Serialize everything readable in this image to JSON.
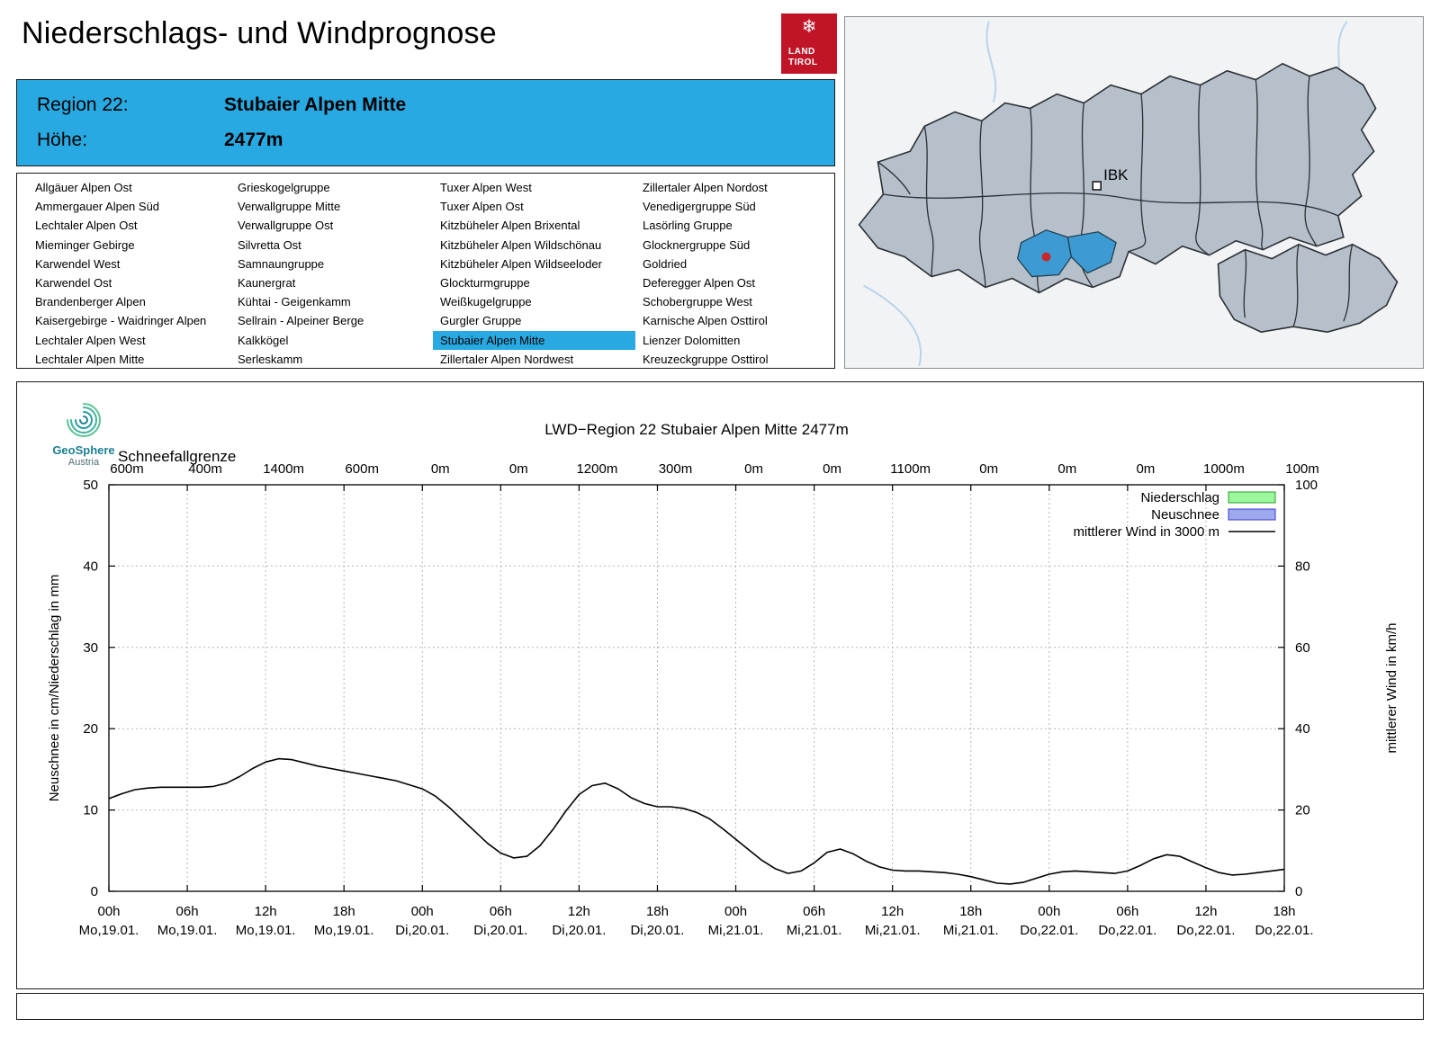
{
  "header": {
    "title": "Niederschlags- und Windprognose",
    "logo_line1": "LAND",
    "logo_line2": "TIROL"
  },
  "region_banner": {
    "region_label": "Region 22:",
    "region_name": "Stubaier Alpen Mitte",
    "altitude_label": "Höhe:",
    "altitude_value": "2477m"
  },
  "region_list": {
    "selected": "Stubaier Alpen Mitte",
    "columns": [
      [
        "Allgäuer Alpen Ost",
        "Ammergauer Alpen Süd",
        "Lechtaler Alpen Ost",
        "Mieminger Gebirge",
        "Karwendel West",
        "Karwendel Ost",
        "Brandenberger Alpen",
        "Kaisergebirge - Waidringer Alpen",
        "Lechtaler Alpen West",
        "Lechtaler Alpen Mitte"
      ],
      [
        "Grieskogelgruppe",
        "Verwallgruppe Mitte",
        "Verwallgruppe Ost",
        "Silvretta Ost",
        "Samnaungruppe",
        "Kaunergrat",
        "Kühtai - Geigenkamm",
        "Sellrain - Alpeiner Berge",
        "Kalkkögel",
        "Serleskamm"
      ],
      [
        "Tuxer Alpen West",
        "Tuxer Alpen Ost",
        "Kitzbüheler Alpen Brixental",
        "Kitzbüheler Alpen Wildschönau",
        "Kitzbüheler Alpen Wildseeloder",
        "Glockturmgruppe",
        "Weißkugelgruppe",
        "Gurgler Gruppe",
        "Stubaier Alpen Mitte",
        "Zillertaler Alpen Nordwest"
      ],
      [
        "Zillertaler Alpen Nordost",
        "Venedigergruppe Süd",
        "Lasörling Gruppe",
        "Glocknergruppe Süd",
        "Goldried",
        "Deferegger Alpen Ost",
        "Schobergruppe West",
        "Karnische Alpen Osttirol",
        "Lienzer Dolomitten",
        "Kreuzeckgruppe Osttirol"
      ]
    ]
  },
  "map": {
    "city_label": "IBK",
    "highlight_color": "#3d9ad2"
  },
  "brand": {
    "name": "GeoSphere",
    "sub": "Austria"
  },
  "chart_data": {
    "type": "line",
    "title": "LWD−Region 22 Stubaier Alpen Mitte 2477m",
    "snowline_label": "Schneefallgrenze",
    "snowline_values": [
      "600m",
      "400m",
      "1400m",
      "600m",
      "0m",
      "0m",
      "1200m",
      "300m",
      "0m",
      "0m",
      "1100m",
      "0m",
      "0m",
      "0m",
      "1000m",
      "100m"
    ],
    "ylabel_left": "Neuschnee in cm/Niederschlag in mm",
    "ylabel_right": "mittlerer Wind in km/h",
    "ylim_left": [
      0,
      50
    ],
    "ylim_right": [
      0,
      100
    ],
    "grid": true,
    "legend_position": "top-right-inside",
    "x_total_hours": 90,
    "x_ticks": [
      {
        "hour": "00h",
        "date": "Mo,19.01."
      },
      {
        "hour": "06h",
        "date": "Mo,19.01."
      },
      {
        "hour": "12h",
        "date": "Mo,19.01."
      },
      {
        "hour": "18h",
        "date": "Mo,19.01."
      },
      {
        "hour": "00h",
        "date": "Di,20.01."
      },
      {
        "hour": "06h",
        "date": "Di,20.01."
      },
      {
        "hour": "12h",
        "date": "Di,20.01."
      },
      {
        "hour": "18h",
        "date": "Di,20.01."
      },
      {
        "hour": "00h",
        "date": "Mi,21.01."
      },
      {
        "hour": "06h",
        "date": "Mi,21.01."
      },
      {
        "hour": "12h",
        "date": "Mi,21.01."
      },
      {
        "hour": "18h",
        "date": "Mi,21.01."
      },
      {
        "hour": "00h",
        "date": "Do,22.01."
      },
      {
        "hour": "06h",
        "date": "Do,22.01."
      },
      {
        "hour": "12h",
        "date": "Do,22.01."
      },
      {
        "hour": "18h",
        "date": "Do,22.01."
      }
    ],
    "legend": [
      {
        "label": "Niederschlag",
        "type": "box",
        "fill": "#9cf69c",
        "stroke": "#2aa02a"
      },
      {
        "label": "Neuschnee",
        "type": "box",
        "fill": "#9da8ef",
        "stroke": "#3b3bcc"
      },
      {
        "label": "mittlerer Wind in 3000 m",
        "type": "line",
        "stroke": "#000000"
      }
    ],
    "series": [
      {
        "name": "mittlerer Wind in 3000 m",
        "axis": "right",
        "x_start_hour": 0,
        "x_step_hours": 1,
        "values_kmh": [
          22.8,
          24.0,
          25.0,
          25.4,
          25.6,
          25.6,
          25.6,
          25.6,
          25.8,
          26.6,
          28.2,
          30.2,
          31.8,
          32.6,
          32.4,
          31.6,
          30.8,
          30.2,
          29.6,
          29.0,
          28.4,
          27.8,
          27.2,
          26.2,
          25.2,
          23.4,
          20.8,
          17.8,
          14.8,
          11.8,
          9.4,
          8.2,
          8.6,
          11.2,
          15.2,
          19.8,
          23.8,
          26.0,
          26.6,
          25.2,
          23.0,
          21.6,
          20.8,
          20.8,
          20.4,
          19.4,
          17.8,
          15.4,
          12.8,
          10.2,
          7.6,
          5.6,
          4.4,
          5.0,
          7.0,
          9.6,
          10.4,
          9.2,
          7.4,
          6.0,
          5.2,
          5.0,
          5.0,
          4.8,
          4.6,
          4.2,
          3.6,
          2.8,
          2.0,
          1.8,
          2.2,
          3.2,
          4.2,
          4.8,
          5.0,
          4.8,
          4.6,
          4.4,
          5.0,
          6.4,
          8.0,
          9.0,
          8.6,
          7.2,
          5.8,
          4.6,
          4.0,
          4.2,
          4.6,
          5.0,
          5.4
        ]
      },
      {
        "name": "Niederschlag",
        "axis": "left",
        "unit": "mm",
        "values": [],
        "note": "no precipitation bars visible in forecast period"
      },
      {
        "name": "Neuschnee",
        "axis": "left",
        "unit": "cm",
        "values": [],
        "note": "no new snow bars visible in forecast period"
      }
    ]
  }
}
